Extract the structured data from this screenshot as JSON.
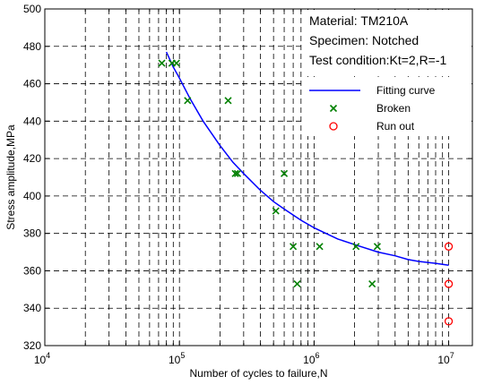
{
  "chart_data": {
    "type": "scatter",
    "x_scale": "log",
    "y_scale": "linear",
    "xlim": [
      10000,
      15000000
    ],
    "ylim": [
      320,
      500
    ],
    "grid": true,
    "legend_placement": "top-right",
    "xlabel": "Number of cycles to failure,N",
    "ylabel": "Stress amplitude,MPa",
    "annotations": [
      "Material: TM210A",
      "Specimen: Notched",
      "Test condition:Kt=2,R=-1"
    ],
    "x_ticks": [
      {
        "base": "10",
        "exp": "4",
        "value": 10000
      },
      {
        "base": "10",
        "exp": "5",
        "value": 100000
      },
      {
        "base": "10",
        "exp": "6",
        "value": 1000000
      },
      {
        "base": "10",
        "exp": "7",
        "value": 10000000
      }
    ],
    "y_ticks": [
      "320",
      "340",
      "360",
      "380",
      "400",
      "420",
      "440",
      "460",
      "480",
      "500"
    ],
    "series": [
      {
        "name": "Fitting curve",
        "kind": "line",
        "color": "#0000ff",
        "x": [
          80000,
          90000,
          100000,
          120000,
          150000,
          200000,
          250000,
          300000,
          400000,
          500000,
          600000,
          800000,
          1000000,
          1500000,
          2000000,
          3000000,
          4000000,
          5000000,
          6000000,
          8000000,
          10000000
        ],
        "y": [
          477,
          469,
          463,
          452,
          440,
          427,
          418,
          412,
          403,
          397,
          393,
          387,
          383,
          377,
          374,
          370,
          368,
          366,
          365,
          364,
          363
        ]
      },
      {
        "name": "Broken",
        "kind": "scatter",
        "marker": "x",
        "color": "#008000",
        "x": [
          74000,
          88000,
          95000,
          115000,
          230000,
          260000,
          270000,
          520000,
          600000,
          700000,
          750000,
          1100000,
          2050000,
          2700000,
          2950000
        ],
        "y": [
          471,
          471,
          471,
          451,
          451,
          412,
          412,
          392,
          412,
          373,
          353,
          373,
          373,
          353,
          373
        ]
      },
      {
        "name": "Run out",
        "kind": "scatter",
        "marker": "o",
        "color": "#ff0000",
        "x": [
          10000000,
          10000000,
          10000000
        ],
        "y": [
          373,
          353,
          333
        ]
      }
    ]
  }
}
